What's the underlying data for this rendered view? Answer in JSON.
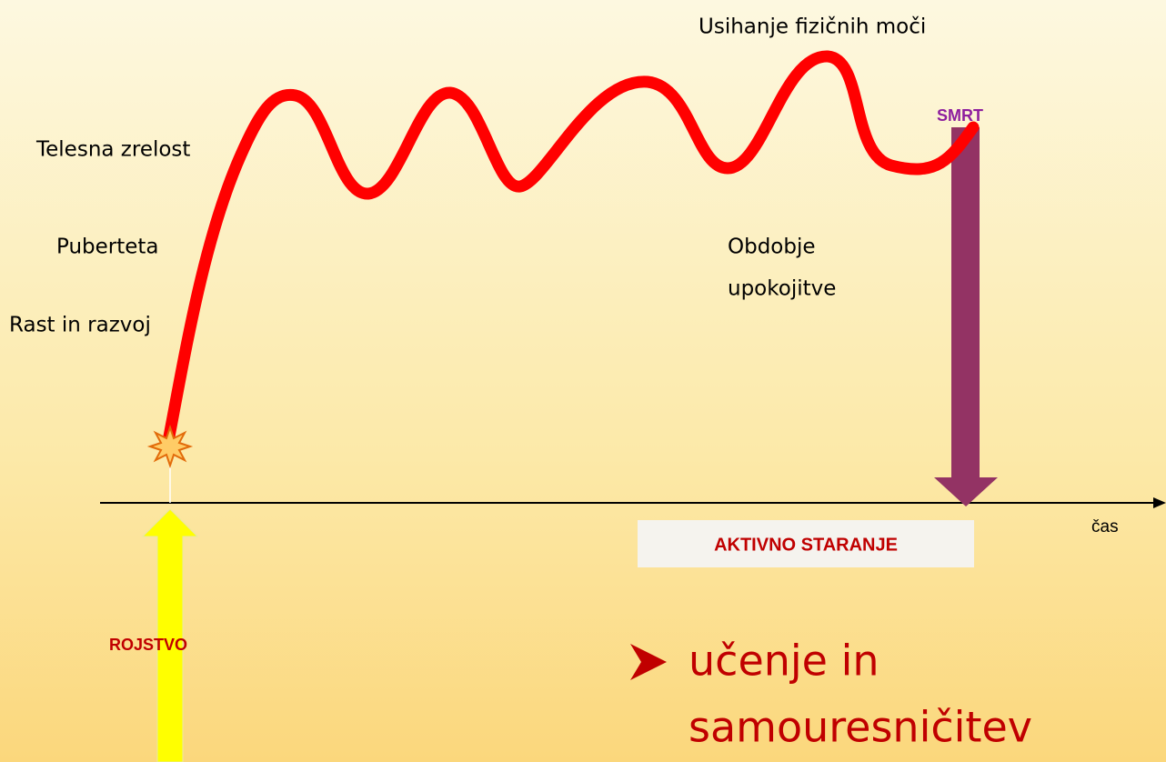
{
  "title": "Usihanje fizičnih moči",
  "labels": {
    "death": "SMRT",
    "maturity": "Telesna zrelost",
    "puberty": "Puberteta",
    "growth": "Rast in razvoj",
    "retirement": [
      "Obdobje",
      "upokojitve"
    ],
    "active_aging": "AKTIVNO STARANJE",
    "time": "čas",
    "birth": "ROJSTVO"
  },
  "bullet": [
    "učenje in",
    "samouresničitev"
  ]
}
